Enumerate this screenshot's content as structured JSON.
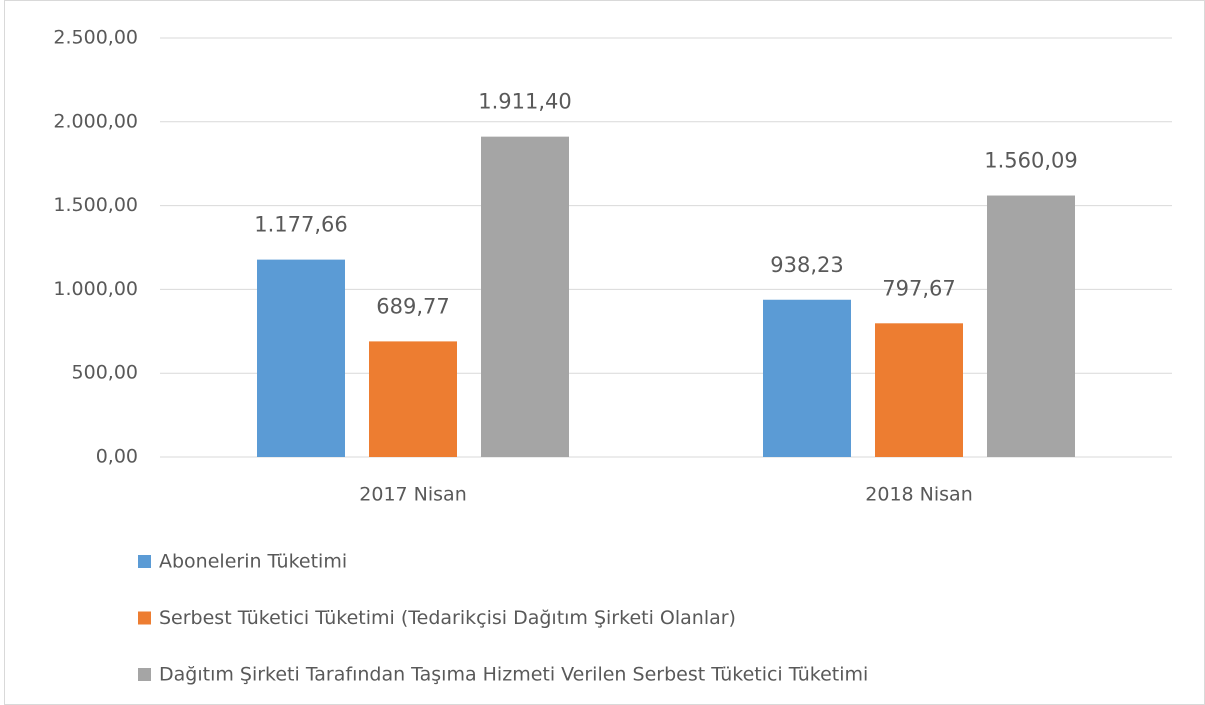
{
  "chart_data": {
    "type": "bar",
    "categories": [
      "2017 Nisan",
      "2018 Nisan"
    ],
    "series": [
      {
        "name": "Abonelerin Tüketimi",
        "color": "#5b9bd5",
        "values": [
          1177.66,
          938.23
        ],
        "value_labels": [
          "1.177,66",
          "938,23"
        ]
      },
      {
        "name": "Serbest Tüketici Tüketimi (Tedarikçisi Dağıtım Şirketi Olanlar)",
        "color": "#ed7d31",
        "values": [
          689.77,
          797.67
        ],
        "value_labels": [
          "689,77",
          "797,67"
        ]
      },
      {
        "name": "Dağıtım Şirketi Tarafından Taşıma Hizmeti Verilen Serbest Tüketici Tüketimi",
        "color": "#a5a5a5",
        "values": [
          1911.4,
          1560.09
        ],
        "value_labels": [
          "1.911,40",
          "1.560,09"
        ]
      }
    ],
    "ylim": [
      0,
      2500
    ],
    "yticks": [
      {
        "value": 0,
        "label": "0,00"
      },
      {
        "value": 500,
        "label": "500,00"
      },
      {
        "value": 1000,
        "label": "1.000,00"
      },
      {
        "value": 1500,
        "label": "1.500,00"
      },
      {
        "value": 2000,
        "label": "2.000,00"
      },
      {
        "value": 2500,
        "label": "2.500,00"
      }
    ],
    "grid": true,
    "legend": "bottom"
  }
}
